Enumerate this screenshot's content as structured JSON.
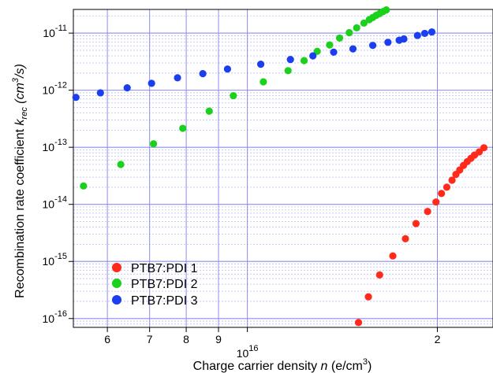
{
  "chart_data": {
    "type": "scatter",
    "title": "",
    "xlabel": "Charge carrier density n (e/cm³)",
    "xlabel_parts": {
      "prefix": "Charge carrier density ",
      "var": "n",
      "unit_open": " (e/cm",
      "unit_sup": "3",
      "unit_close": ")"
    },
    "ylabel_parts": {
      "prefix": "Recombination rate coefficient ",
      "var": "k",
      "var_sub": "rec",
      "unit_open": " (cm",
      "unit_sup": "3",
      "unit_close": "/s)"
    },
    "x_scale": "log",
    "y_scale": "log",
    "xlim": [
      5300000000000000.0,
      2.45e+16
    ],
    "ylim": [
      7e-17,
      2.6e-11
    ],
    "grid": true,
    "legend_position": "bottom-left",
    "x_tick_labels": [
      {
        "value": 6000000000000000.0,
        "label": "6"
      },
      {
        "value": 7000000000000000.0,
        "label": "7"
      },
      {
        "value": 8000000000000000.0,
        "label": "8"
      },
      {
        "value": 9000000000000000.0,
        "label": "9"
      },
      {
        "value": 1e+16,
        "label": "10¹⁶",
        "base": "10",
        "exp": "16"
      },
      {
        "value": 2e+16,
        "label": "2"
      }
    ],
    "y_tick_labels": [
      {
        "value": 1e-16,
        "base": "10",
        "exp": "-16"
      },
      {
        "value": 1e-15,
        "base": "10",
        "exp": "-15"
      },
      {
        "value": 1e-14,
        "base": "10",
        "exp": "-14"
      },
      {
        "value": 1e-13,
        "base": "10",
        "exp": "-13"
      },
      {
        "value": 1e-12,
        "base": "10",
        "exp": "-12"
      },
      {
        "value": 1e-11,
        "base": "10",
        "exp": "-11"
      }
    ],
    "series": [
      {
        "name": "PTB7:PDI 1",
        "color": "#ff2a1a",
        "points": [
          [
            1.5e+16,
            8.5e-17
          ],
          [
            1.555e+16,
            2.4e-16
          ],
          [
            1.62e+16,
            5.8e-16
          ],
          [
            1.7e+16,
            1.25e-15
          ],
          [
            1.78e+16,
            2.5e-15
          ],
          [
            1.85e+16,
            4.6e-15
          ],
          [
            1.93e+16,
            7.5e-15
          ],
          [
            1.99e+16,
            1.1e-14
          ],
          [
            2.03e+16,
            1.55e-14
          ],
          [
            2.07e+16,
            2e-14
          ],
          [
            2.11e+16,
            2.65e-14
          ],
          [
            2.14e+16,
            3.35e-14
          ],
          [
            2.17e+16,
            4e-14
          ],
          [
            2.2e+16,
            4.8e-14
          ],
          [
            2.23e+16,
            5.6e-14
          ],
          [
            2.26e+16,
            6.4e-14
          ],
          [
            2.29e+16,
            7.3e-14
          ],
          [
            2.33e+16,
            8.3e-14
          ],
          [
            2.37e+16,
            9.8e-14
          ]
        ]
      },
      {
        "name": "PTB7:PDI 2",
        "color": "#1bd11b",
        "points": [
          [
            5500000000000000.0,
            2.1e-14
          ],
          [
            6300000000000000.0,
            5e-14
          ],
          [
            7100000000000000.0,
            1.15e-13
          ],
          [
            7900000000000000.0,
            2.15e-13
          ],
          [
            8700000000000000.0,
            4.3e-13
          ],
          [
            9500000000000000.0,
            8e-13
          ],
          [
            1.06e+16,
            1.4e-12
          ],
          [
            1.16e+16,
            2.2e-12
          ],
          [
            1.23e+16,
            3.3e-12
          ],
          [
            1.29e+16,
            4.8e-12
          ],
          [
            1.35e+16,
            6.2e-12
          ],
          [
            1.4e+16,
            8.2e-12
          ],
          [
            1.45e+16,
            1.02e-11
          ],
          [
            1.49e+16,
            1.24e-11
          ],
          [
            1.53e+16,
            1.5e-11
          ],
          [
            1.56e+16,
            1.72e-11
          ],
          [
            1.58e+16,
            1.88e-11
          ],
          [
            1.6e+16,
            2.05e-11
          ],
          [
            1.62e+16,
            2.2e-11
          ],
          [
            1.64e+16,
            2.38e-11
          ],
          [
            1.66e+16,
            2.55e-11
          ]
        ]
      },
      {
        "name": "PTB7:PDI 3",
        "color": "#1a3ef0",
        "points": [
          [
            5350000000000000.0,
            7.5e-13
          ],
          [
            5850000000000000.0,
            9e-13
          ],
          [
            6450000000000000.0,
            1.1e-12
          ],
          [
            7050000000000000.0,
            1.32e-12
          ],
          [
            7750000000000000.0,
            1.65e-12
          ],
          [
            8500000000000000.0,
            1.95e-12
          ],
          [
            9300000000000000.0,
            2.35e-12
          ],
          [
            1.05e+16,
            2.85e-12
          ],
          [
            1.17e+16,
            3.45e-12
          ],
          [
            1.27e+16,
            4e-12
          ],
          [
            1.37e+16,
            4.65e-12
          ],
          [
            1.47e+16,
            5.3e-12
          ],
          [
            1.58e+16,
            6.1e-12
          ],
          [
            1.67e+16,
            6.9e-12
          ],
          [
            1.74e+16,
            7.5e-12
          ],
          [
            1.77e+16,
            7.9e-12
          ],
          [
            1.86e+16,
            9.1e-12
          ],
          [
            1.91e+16,
            9.9e-12
          ],
          [
            1.96e+16,
            1.05e-11
          ]
        ]
      }
    ]
  }
}
